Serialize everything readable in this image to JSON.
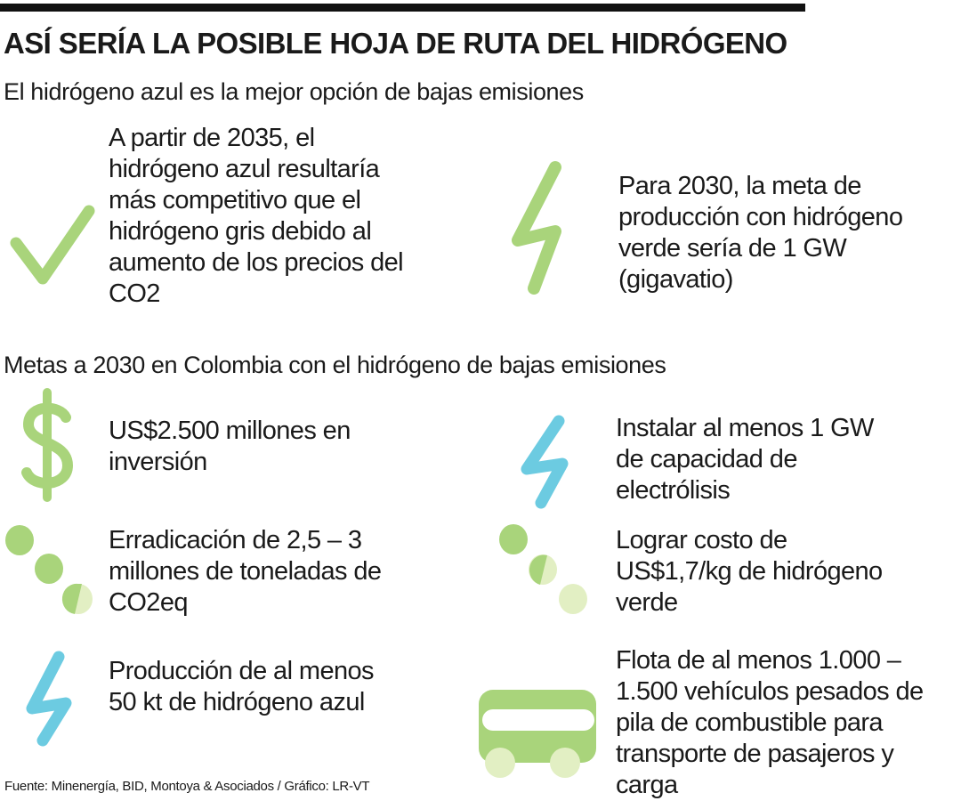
{
  "title": "ASÍ SERÍA LA POSIBLE HOJA DE RUTA DEL HIDRÓGENO",
  "section1": {
    "heading": "El hidrógeno azul es la mejor opción de bajas emisiones",
    "items": [
      {
        "icon": "checkmark-icon",
        "text": "A partir de 2035, el hidrógeno azul resultaría más competitivo que el hidrógeno gris debido al aumento de los precios del CO2"
      },
      {
        "icon": "lightning-icon",
        "text": "Para 2030, la meta de producción con hidrógeno verde sería de 1 GW (gigavatio)"
      }
    ]
  },
  "section2": {
    "heading": "Metas a 2030 en Colombia con el hidrógeno de bajas emisiones",
    "items": [
      {
        "icon": "dollar-icon",
        "text": "US$2.500 millones en inversión"
      },
      {
        "icon": "lightning-icon",
        "text": "Instalar al menos 1 GW de capacidad de electrólisis"
      },
      {
        "icon": "dots-icon",
        "text": "Erradicación de 2,5 – 3 millones de toneladas de CO2eq"
      },
      {
        "icon": "dots-icon",
        "text": "Lograr costo de US$1,7/kg de hidrógeno verde"
      },
      {
        "icon": "lightning-icon",
        "text": "Producción de al menos 50 kt de hidrógeno azul"
      },
      {
        "icon": "bus-icon",
        "text": "Flota de al menos 1.000 – 1.500 vehículos pesados de pila de combustible para transporte de pasajeros y carga"
      }
    ]
  },
  "footer": "Fuente: Minenergía, BID, Montoya & Asociados / Gráfico: LR-VT",
  "colors": {
    "green": "#a9d47b",
    "light_green": "#e2efc3",
    "blue": "#6ccbe1",
    "black": "#111111"
  }
}
